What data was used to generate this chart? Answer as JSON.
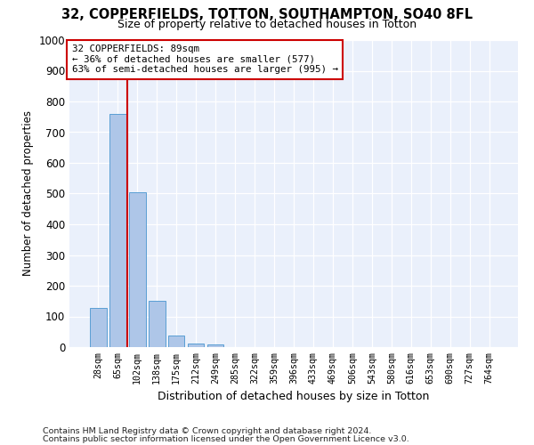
{
  "title": "32, COPPERFIELDS, TOTTON, SOUTHAMPTON, SO40 8FL",
  "subtitle": "Size of property relative to detached houses in Totton",
  "xlabel": "Distribution of detached houses by size in Totton",
  "ylabel": "Number of detached properties",
  "footnote1": "Contains HM Land Registry data © Crown copyright and database right 2024.",
  "footnote2": "Contains public sector information licensed under the Open Government Licence v3.0.",
  "bar_labels": [
    "28sqm",
    "65sqm",
    "102sqm",
    "138sqm",
    "175sqm",
    "212sqm",
    "249sqm",
    "285sqm",
    "322sqm",
    "359sqm",
    "396sqm",
    "433sqm",
    "469sqm",
    "506sqm",
    "543sqm",
    "580sqm",
    "616sqm",
    "653sqm",
    "690sqm",
    "727sqm",
    "764sqm"
  ],
  "bar_values": [
    128,
    760,
    505,
    150,
    37,
    12,
    8,
    0,
    0,
    0,
    0,
    0,
    0,
    0,
    0,
    0,
    0,
    0,
    0,
    0,
    0
  ],
  "bar_color": "#aec6e8",
  "bar_edge_color": "#5a9fd4",
  "ylim": [
    0,
    1000
  ],
  "yticks": [
    0,
    100,
    200,
    300,
    400,
    500,
    600,
    700,
    800,
    900,
    1000
  ],
  "property_line_x": 1.5,
  "annotation_line1": "32 COPPERFIELDS: 89sqm",
  "annotation_line2": "← 36% of detached houses are smaller (577)",
  "annotation_line3": "63% of semi-detached houses are larger (995) →",
  "annotation_box_color": "#ffffff",
  "annotation_box_edge": "#cc0000",
  "red_line_color": "#cc0000",
  "plot_bg_color": "#eaf0fb",
  "fig_width": 6.0,
  "fig_height": 5.0,
  "dpi": 100
}
